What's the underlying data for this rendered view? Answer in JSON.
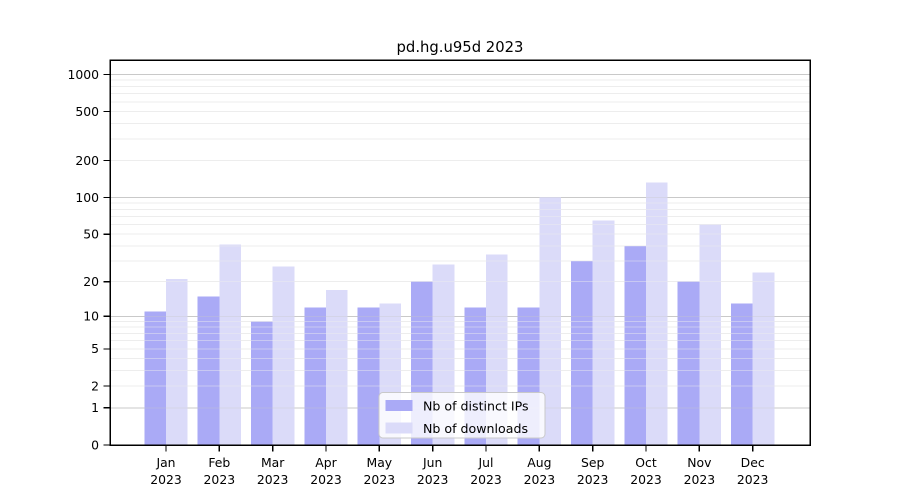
{
  "figure": {
    "title": "pd.hg.u95d 2023"
  },
  "legend": {
    "items": [
      {
        "label": "Nb of distinct IPs",
        "color": "#aaaaf6"
      },
      {
        "label": "Nb of downloads",
        "color": "#dbdbf9"
      }
    ]
  },
  "chart_data": {
    "type": "bar",
    "title": "pd.hg.u95d 2023",
    "categories": [
      "Jan 2023",
      "Feb 2023",
      "Mar 2023",
      "Apr 2023",
      "May 2023",
      "Jun 2023",
      "Jul 2023",
      "Aug 2023",
      "Sep 2023",
      "Oct 2023",
      "Nov 2023",
      "Dec 2023"
    ],
    "months": [
      "Jan",
      "Feb",
      "Mar",
      "Apr",
      "May",
      "Jun",
      "Jul",
      "Aug",
      "Sep",
      "Oct",
      "Nov",
      "Dec"
    ],
    "year": "2023",
    "series": [
      {
        "name": "Nb of distinct IPs",
        "color": "#aaaaf6",
        "values": [
          11,
          15,
          9,
          12,
          12,
          20,
          12,
          12,
          30,
          40,
          20,
          13
        ]
      },
      {
        "name": "Nb of downloads",
        "color": "#dbdbf9",
        "values": [
          21,
          41,
          27,
          17,
          13,
          28,
          34,
          101,
          65,
          132,
          60,
          24
        ]
      }
    ],
    "xlabel": "",
    "ylabel": "",
    "yscale": "log1p",
    "ylim": [
      0,
      1310
    ],
    "y_ticks": [
      0,
      1,
      2,
      5,
      10,
      20,
      50,
      100,
      200,
      500,
      1000
    ],
    "y_major_gridlines": [
      1,
      10,
      100,
      1000
    ],
    "y_minor_gridlines": [
      2,
      3,
      4,
      5,
      6,
      7,
      8,
      9,
      20,
      30,
      40,
      50,
      60,
      70,
      80,
      90,
      200,
      300,
      400,
      500,
      600,
      700,
      800,
      900
    ],
    "grid": true,
    "legend_position": "lower center"
  },
  "colors": {
    "bar_dark": "#aaaaf6",
    "bar_light": "#dbdbf9",
    "grid_major": "#c9c9c9",
    "grid_minor": "#ededed",
    "spine": "#000000",
    "legend_border": "#c9c9c9",
    "background": "#ffffff"
  }
}
